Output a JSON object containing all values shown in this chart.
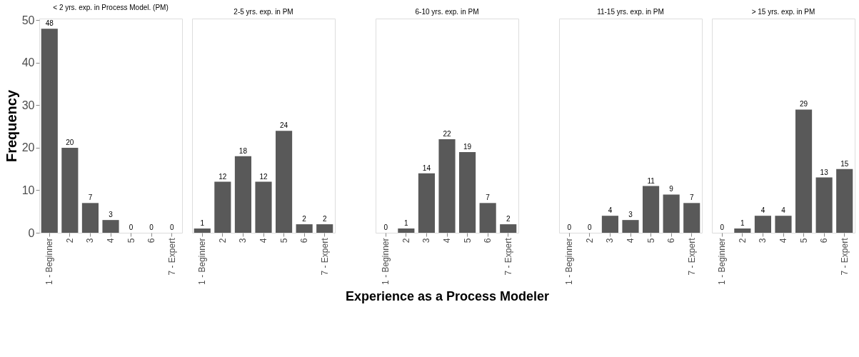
{
  "chart_data": [
    {
      "type": "bar",
      "title": "< 2 yrs. exp. in Process Model. (PM)",
      "ylabel": "Frequency",
      "categories": [
        "1 - Beginner",
        "2",
        "3",
        "4",
        "5",
        "6",
        "7 - Expert"
      ],
      "values": [
        48,
        20,
        7,
        3,
        0,
        0,
        0
      ],
      "color": "#595959",
      "ylim": [
        0,
        50.4
      ],
      "yticks": [
        0,
        10,
        20,
        30,
        40,
        50
      ],
      "data_labels": true,
      "grid": false
    },
    {
      "type": "bar",
      "title": "2-5 yrs. exp. in PM",
      "categories": [
        "1 - Beginner",
        "2",
        "3",
        "4",
        "5",
        "6",
        "7 - Expert"
      ],
      "values": [
        1,
        12,
        18,
        12,
        24,
        2,
        2
      ],
      "color": "#595959",
      "ylim": [
        0,
        50.4
      ],
      "yticks": [
        0,
        10,
        20,
        30,
        40,
        50
      ],
      "data_labels": true,
      "grid": false,
      "tick_labels": "x"
    },
    {
      "type": "bar",
      "title": "6-10 yrs. exp. in PM",
      "xlabel": "Experience as a Process Modeler",
      "categories": [
        "1 - Beginner",
        "2",
        "3",
        "4",
        "5",
        "6",
        "7 - Expert"
      ],
      "values": [
        0,
        1,
        14,
        22,
        19,
        7,
        2
      ],
      "color": "#595959",
      "ylim": [
        0,
        50.4
      ],
      "yticks": [
        0,
        10,
        20,
        30,
        40,
        50
      ],
      "data_labels": true,
      "grid": false,
      "tick_labels": "x"
    },
    {
      "type": "bar",
      "title": "11-15 yrs. exp. in PM",
      "categories": [
        "1 - Beginner",
        "2",
        "3",
        "4",
        "5",
        "6",
        "7 - Expert"
      ],
      "values": [
        0,
        0,
        4,
        3,
        11,
        9,
        7
      ],
      "color": "#595959",
      "ylim": [
        0,
        50.4
      ],
      "yticks": [
        0,
        10,
        20,
        30,
        40,
        50
      ],
      "data_labels": true,
      "grid": false,
      "tick_labels": "x"
    },
    {
      "type": "bar",
      "title": "> 15 yrs. exp. in PM",
      "categories": [
        "1 - Beginner",
        "2",
        "3",
        "4",
        "5",
        "6",
        "7 - Expert"
      ],
      "values": [
        0,
        1,
        4,
        4,
        29,
        13,
        15
      ],
      "color": "#595959",
      "ylim": [
        0,
        50.4
      ],
      "yticks": [
        0,
        10,
        20,
        30,
        40,
        50
      ],
      "data_labels": true,
      "grid": false,
      "tick_labels": "x"
    }
  ]
}
